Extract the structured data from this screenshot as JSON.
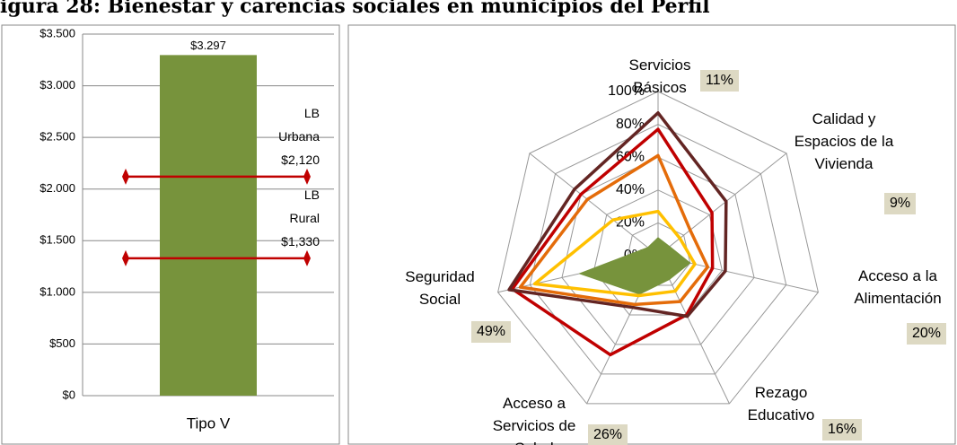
{
  "title": "igura 28: Bienestar y carencias sociales en municipios del Perfil",
  "chart_data": [
    {
      "type": "bar",
      "categories": [
        "Tipo V"
      ],
      "values": [
        3297
      ],
      "value_labels": [
        "$3.297"
      ],
      "color": "#77933c",
      "ylim": [
        0,
        3500
      ],
      "yticks": [
        {
          "value": 0,
          "label": "$0"
        },
        {
          "value": 500,
          "label": "$500"
        },
        {
          "value": 1000,
          "label": "$1.000"
        },
        {
          "value": 1500,
          "label": "$1.500"
        },
        {
          "value": 2000,
          "label": "$2.000"
        },
        {
          "value": 2500,
          "label": "$2.500"
        },
        {
          "value": 3000,
          "label": "$3.000"
        },
        {
          "value": 3500,
          "label": "$3.500"
        }
      ],
      "grid": true,
      "reference_lines": [
        {
          "name": "LB Urbana",
          "value": 2120,
          "value_label": "$2,120",
          "color": "#c00000"
        },
        {
          "name": "LB Rural",
          "value": 1330,
          "value_label": "$1,330",
          "color": "#c00000"
        }
      ]
    },
    {
      "type": "radar",
      "categories": [
        "Servicios Básicos",
        "Calidad y Espacios de la Vivienda",
        "Acceso a la Alimentación",
        "Rezago Educativo",
        "Acceso a Servicios de Salud",
        "Seguridad Social",
        null
      ],
      "rlim": [
        0,
        100
      ],
      "rticks": [
        {
          "value": 0,
          "label": "0%"
        },
        {
          "value": 20,
          "label": "20%"
        },
        {
          "value": 40,
          "label": "40%"
        },
        {
          "value": 60,
          "label": "60%"
        },
        {
          "value": 80,
          "label": "80%"
        },
        {
          "value": 100,
          "label": "100%"
        }
      ],
      "series": [
        {
          "color": "#77933c",
          "fill": true,
          "values": [
            11,
            9,
            20,
            16,
            26,
            49,
            8
          ],
          "value_labels": [
            "11%",
            "9%",
            "20%",
            "16%",
            "26%",
            "49%",
            null
          ]
        },
        {
          "color": "#ffc000",
          "values": [
            27,
            17,
            23,
            24,
            27,
            77,
            35
          ]
        },
        {
          "color": "#e46c0a",
          "values": [
            61,
            25,
            31,
            31,
            33,
            86,
            55
          ]
        },
        {
          "color": "#c00000",
          "values": [
            77,
            42,
            34,
            40,
            67,
            91,
            60
          ]
        },
        {
          "color": "#632523",
          "values": [
            87,
            53,
            42,
            41,
            35,
            93,
            65
          ]
        }
      ]
    }
  ]
}
